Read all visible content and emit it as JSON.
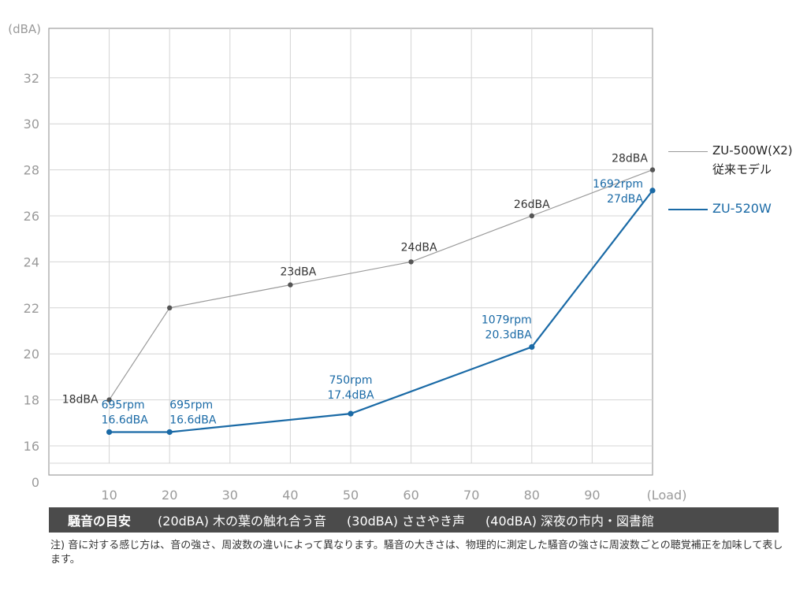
{
  "chart_data": {
    "type": "line",
    "ylabel": "(dBA)",
    "xlabel": "(Load)",
    "x_ticks": [
      10,
      20,
      30,
      40,
      50,
      60,
      70,
      80,
      90
    ],
    "y_ticks": [
      16,
      18,
      20,
      22,
      24,
      26,
      28,
      30,
      32
    ],
    "y_zero_label": "0",
    "ylim": [
      15,
      34
    ],
    "xlim": [
      0,
      100
    ],
    "grid": true,
    "legend_position": "right",
    "series": [
      {
        "name": "ZU-500W(X2)",
        "name_sub": "従来モデル",
        "color": "#9a9a9a",
        "point_color": "#555555",
        "label_color": "#333333",
        "x": [
          10,
          20,
          40,
          60,
          80,
          100
        ],
        "y": [
          18,
          22,
          23,
          24,
          26,
          28
        ],
        "labels": [
          "18dBA",
          "",
          "23dBA",
          "24dBA",
          "26dBA",
          "28dBA"
        ]
      },
      {
        "name": "ZU-520W",
        "color": "#1a6aa6",
        "point_color": "#1a6aa6",
        "label_color": "#1a6aa6",
        "x": [
          10,
          20,
          50,
          80,
          100
        ],
        "y": [
          16.6,
          16.6,
          17.4,
          20.3,
          27.1
        ],
        "labels": [
          [
            "695rpm",
            "16.6dBA"
          ],
          [
            "695rpm",
            "16.6dBA"
          ],
          [
            "750rpm",
            "17.4dBA"
          ],
          [
            "1079rpm",
            "20.3dBA"
          ],
          [
            "1692rpm",
            "27dBA"
          ]
        ]
      }
    ]
  },
  "guide": {
    "title": "騒音の目安",
    "items": [
      "(20dBA) 木の葉の触れ合う音",
      "(30dBA) ささやき声",
      "(40dBA) 深夜の市内・図書館"
    ]
  },
  "footnote": "注) 音に対する感じ方は、音の強さ、周波数の違いによって異なります。騒音の大きさは、物理的に測定した騒音の強さに周波数ごとの聴覚補正を加味して表します。"
}
